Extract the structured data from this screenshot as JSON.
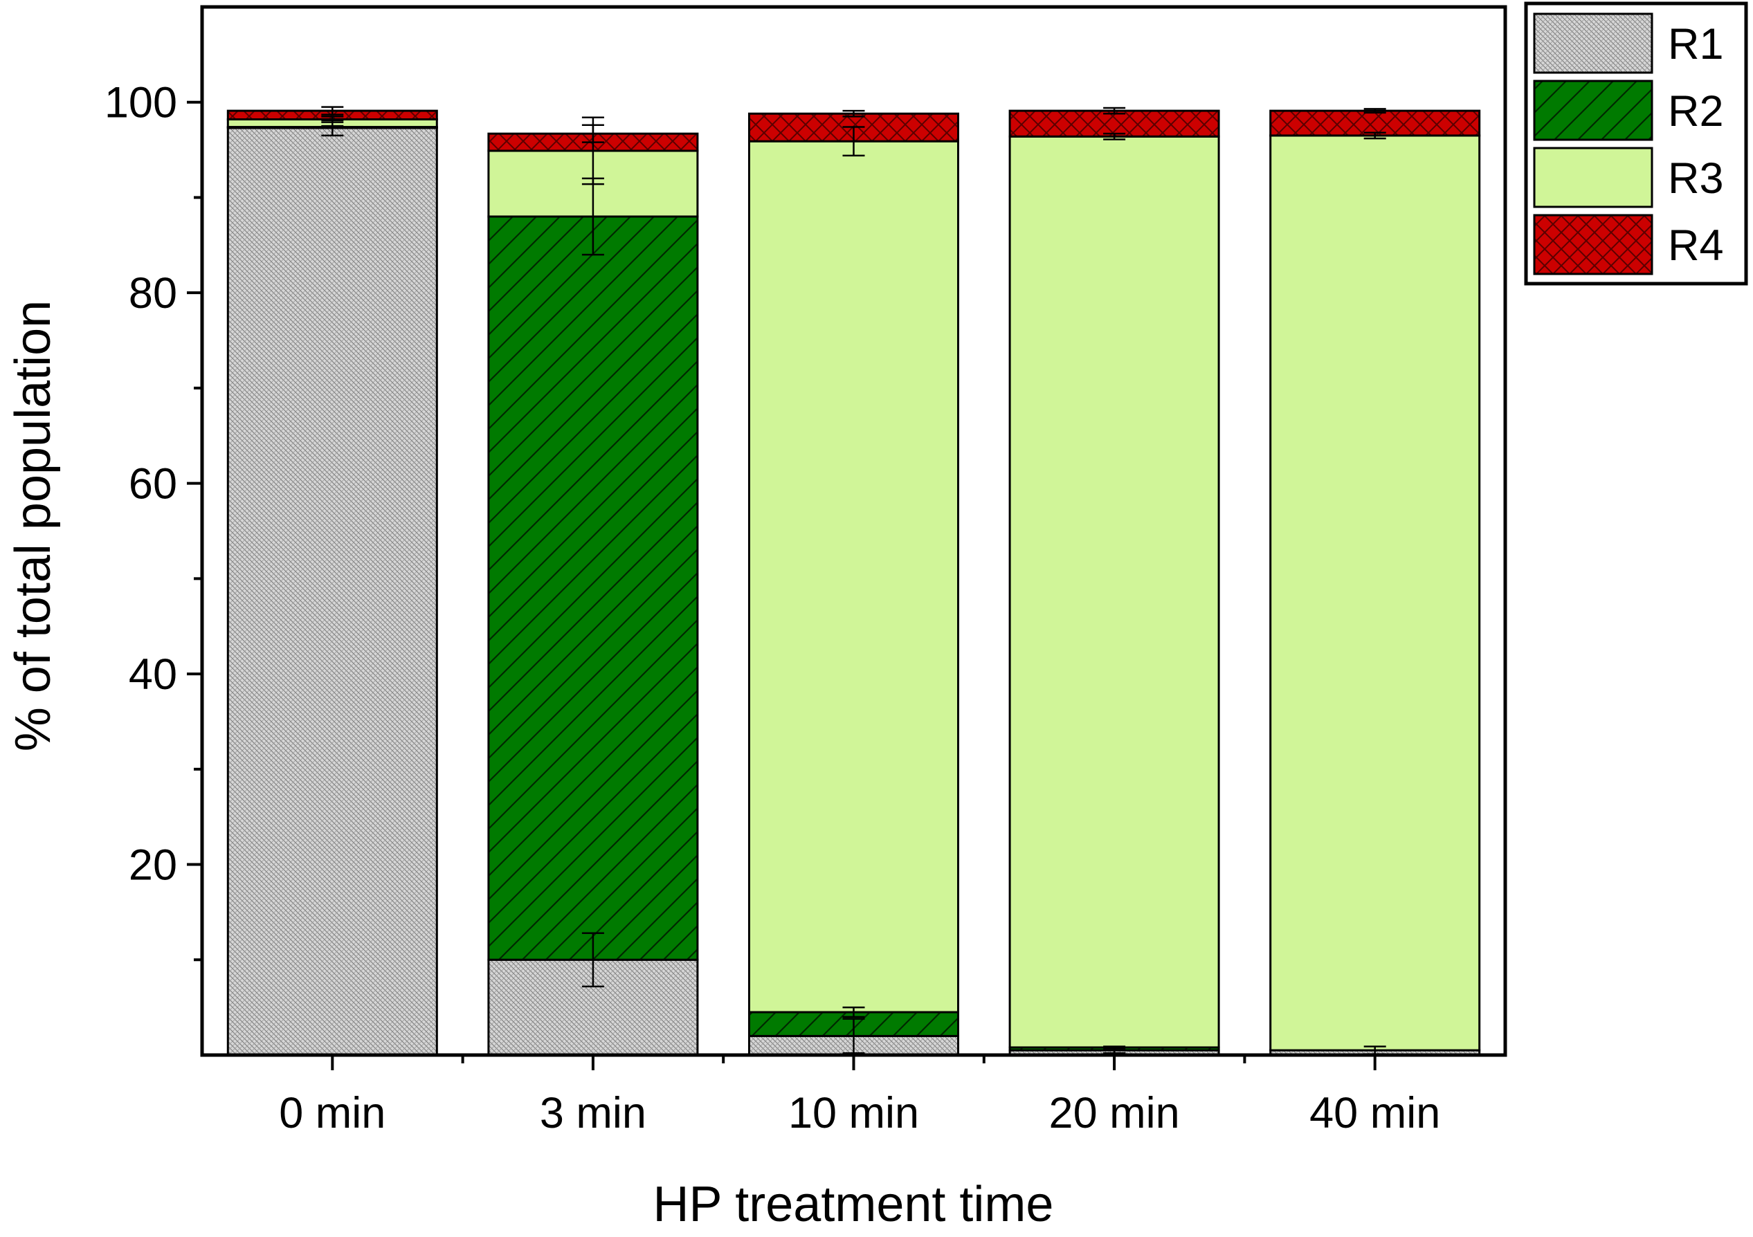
{
  "chart_data": {
    "type": "bar",
    "stacked": true,
    "xlabel": "HP treatment time",
    "ylabel": "% of total population",
    "ylim": [
      0,
      110
    ],
    "y_ticks": [
      20,
      40,
      60,
      80,
      100
    ],
    "y_tick_labels": [
      "20",
      "40",
      "60",
      "80",
      "100"
    ],
    "categories": [
      "0 min",
      "3 min",
      "10 min",
      "20 min",
      "40 min"
    ],
    "legend_position": "outside-top-right",
    "grid": false,
    "series": [
      {
        "name": "R1",
        "values": [
          97.3,
          10.0,
          2.0,
          0.5,
          0.5
        ],
        "errors": [
          0.8,
          2.8,
          1.8,
          0.3,
          0.4
        ],
        "color": "#cccccc",
        "pattern": "fine-crosshatch"
      },
      {
        "name": "R2",
        "values": [
          0.1,
          78.0,
          2.5,
          0.3,
          0.0
        ],
        "errors": [
          0.1,
          4.0,
          0.5,
          0.1,
          0.0
        ],
        "color": "#007a00",
        "pattern": "diagonal"
      },
      {
        "name": "R3",
        "values": [
          0.8,
          6.9,
          91.4,
          95.6,
          96.0
        ],
        "errors": [
          0.3,
          3.5,
          1.5,
          0.3,
          0.3
        ],
        "color": "#d0f598",
        "pattern": "solid"
      },
      {
        "name": "R4",
        "values": [
          0.9,
          1.8,
          2.9,
          2.7,
          2.6
        ],
        "errors": [
          0.4,
          0.9,
          0.3,
          0.3,
          0.2
        ],
        "color": "#cc0000",
        "pattern": "crosshatch"
      }
    ]
  }
}
